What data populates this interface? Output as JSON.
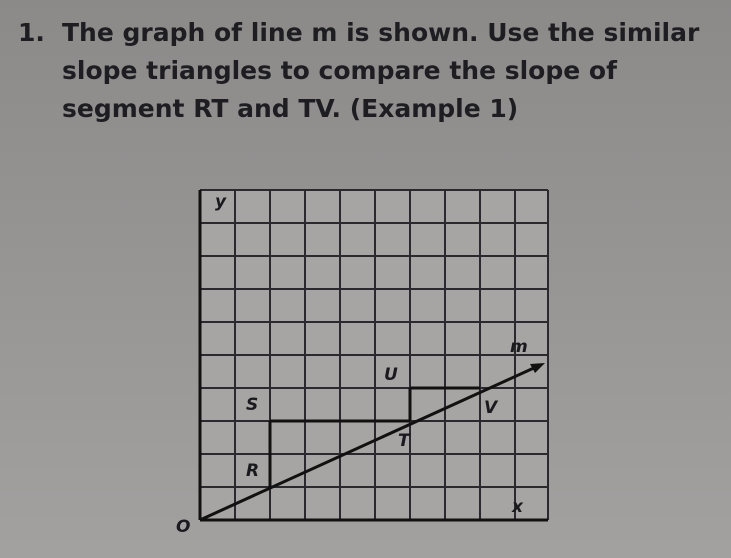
{
  "question": {
    "number": "1.",
    "text": "The graph of line m is shown. Use the similar slope triangles to compare the slope of segment RT and TV. (Example 1)"
  },
  "graph": {
    "labels": {
      "y": "y",
      "m": "m",
      "U": "U",
      "S": "S",
      "V": "V",
      "T": "T",
      "R": "R",
      "x": "x",
      "O": "O"
    }
  }
}
